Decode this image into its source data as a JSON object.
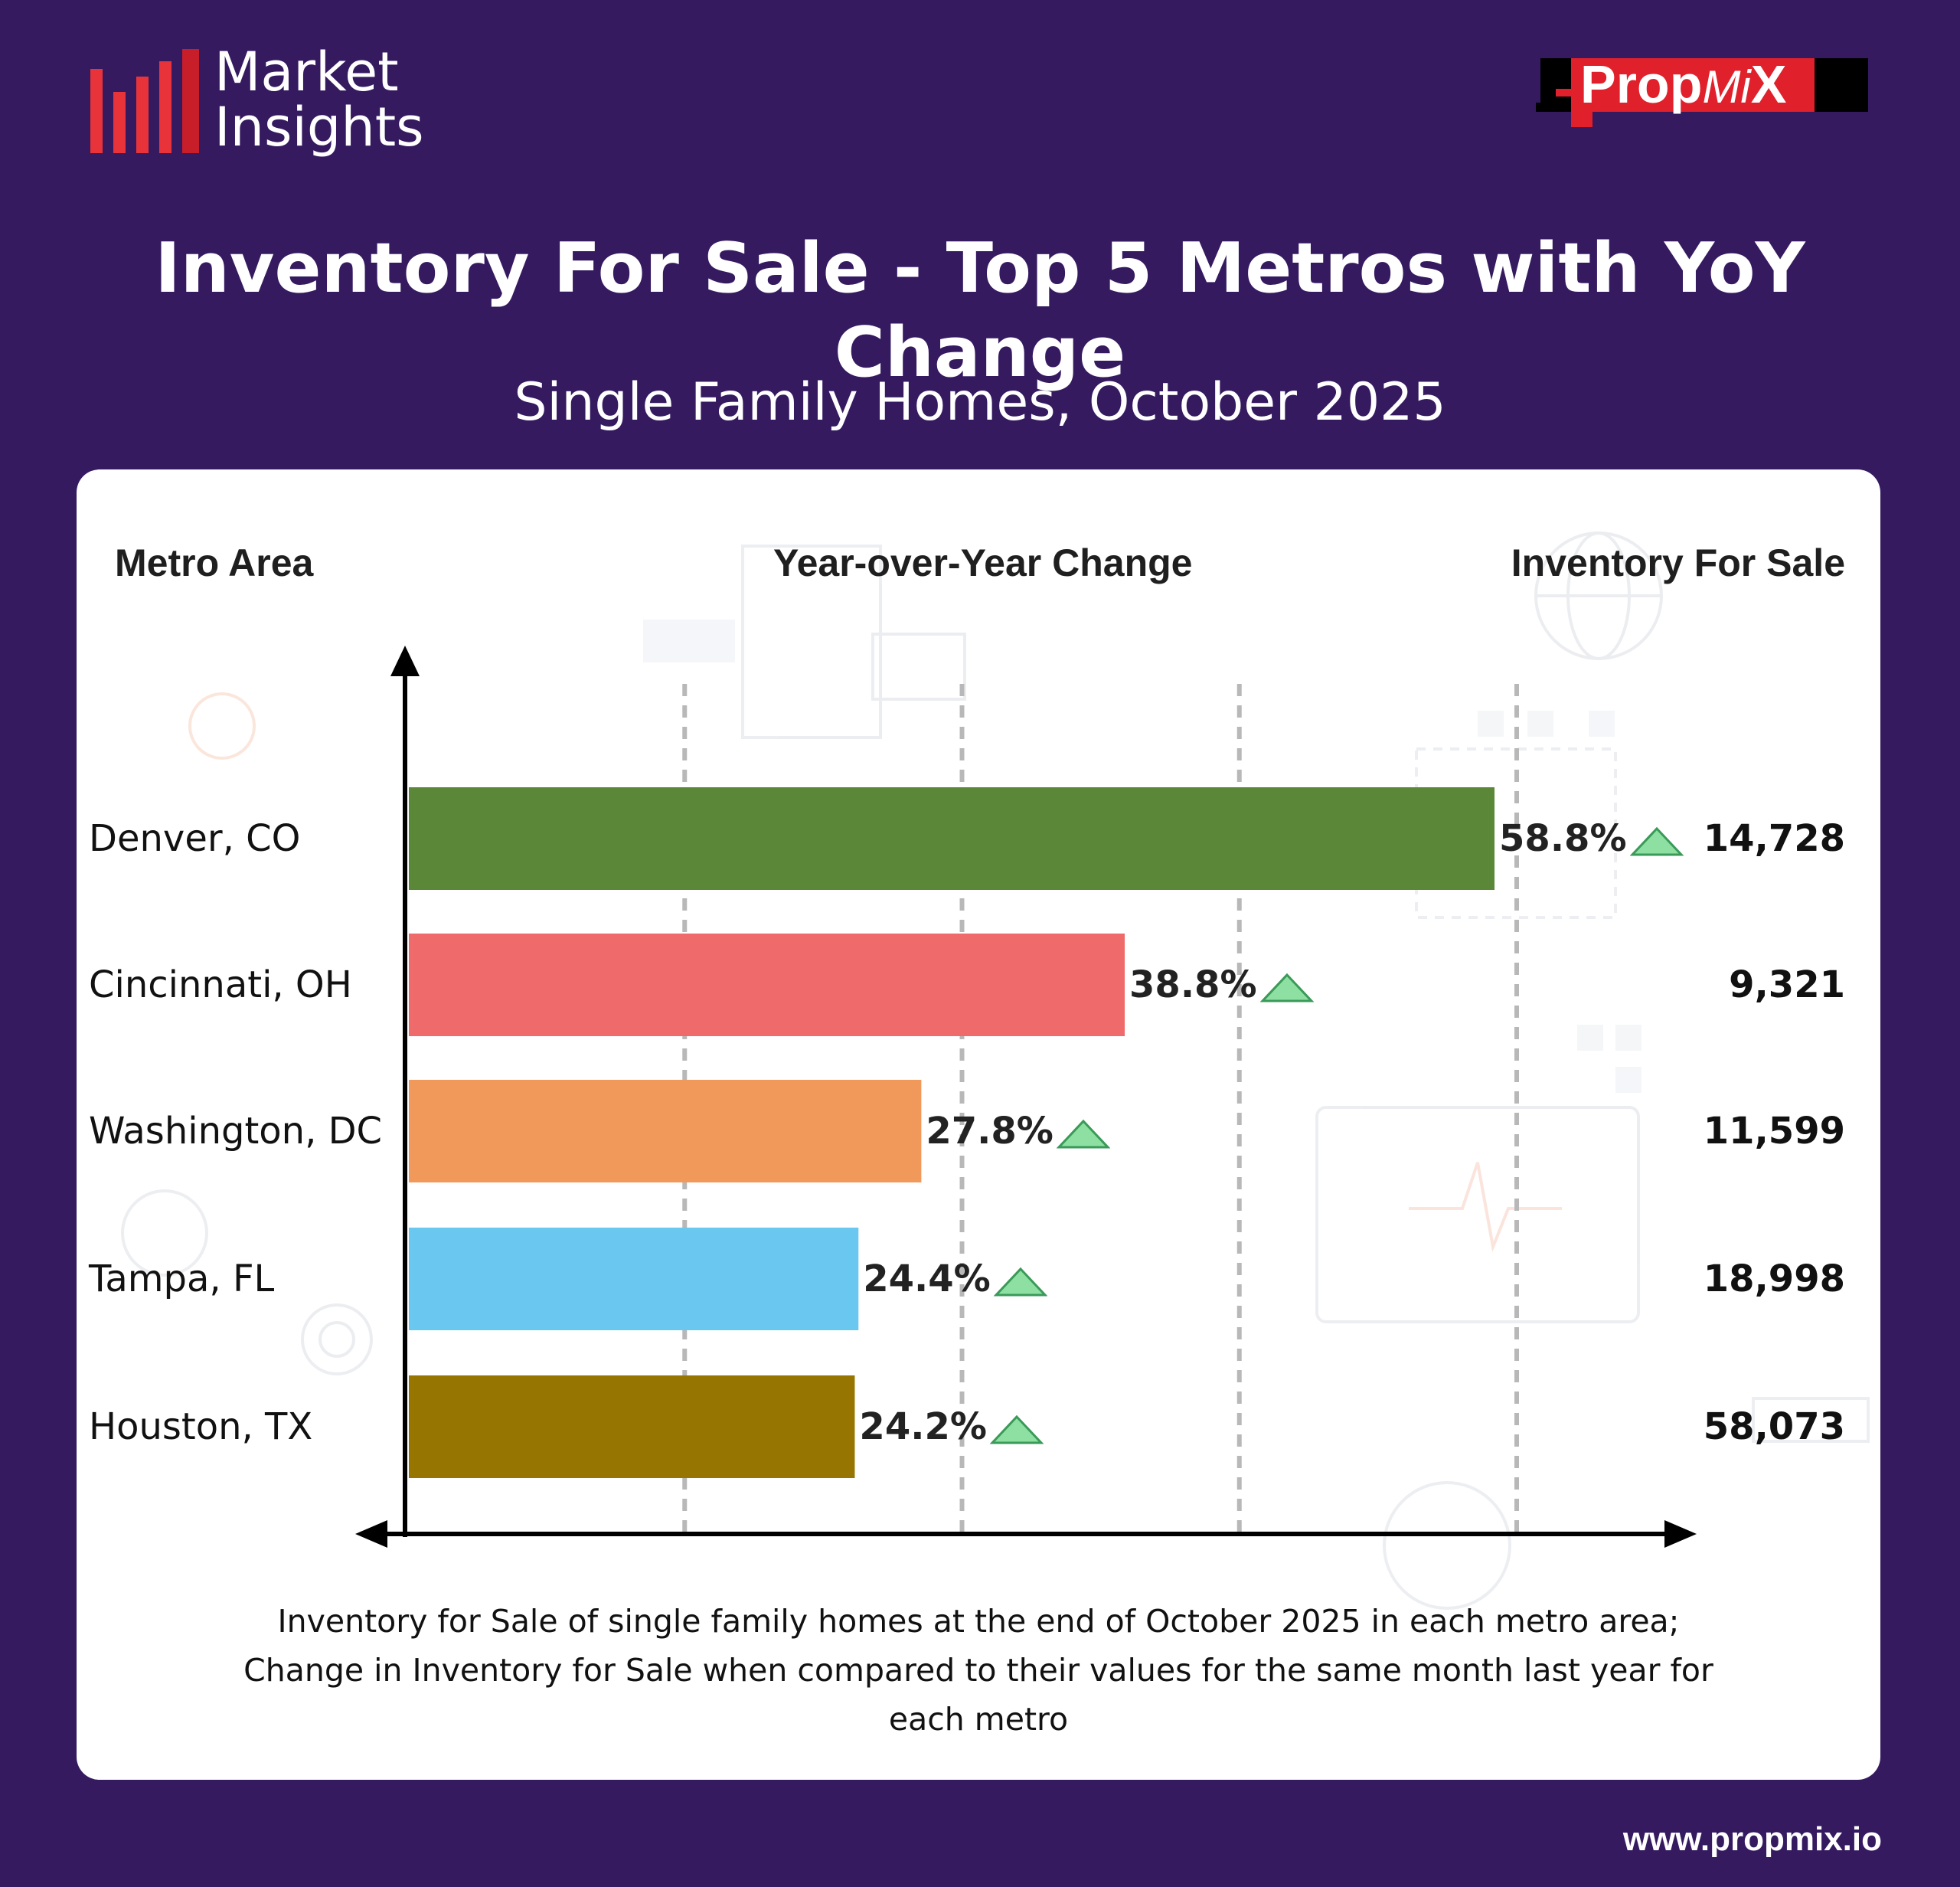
{
  "header": {
    "logo_line1": "Market",
    "logo_line2": "Insights",
    "brand_main": "Prop",
    "brand_mi": "Mi",
    "brand_x": "X"
  },
  "title": "Inventory For Sale - Top 5 Metros with YoY Change",
  "subtitle": "Single Family Homes, October 2025",
  "columns": {
    "metro": "Metro Area",
    "yoy": "Year-over-Year Change",
    "inventory": "Inventory For Sale"
  },
  "chart_data": {
    "type": "bar",
    "orientation": "horizontal",
    "categories": [
      "Denver, CO",
      "Cincinnati, OH",
      "Washington, DC",
      "Tampa, FL",
      "Houston, TX"
    ],
    "series": [
      {
        "values": [
          58.8,
          38.8,
          27.8,
          24.4,
          24.2
        ],
        "labels": [
          "58.8%",
          "38.8%",
          "27.8%",
          "24.4%",
          "24.2%"
        ],
        "colors": [
          "#5a8738",
          "#ef6a6a",
          "#f1995a",
          "#69c7f0",
          "#967500"
        ]
      }
    ],
    "inventory": [
      "14,728",
      "9,321",
      "11,599",
      "18,998",
      "58,073"
    ],
    "change_direction": [
      "up",
      "up",
      "up",
      "up",
      "up"
    ],
    "up_marker_color": "#8ee0a2",
    "xlim": [
      0,
      60
    ],
    "grid": true,
    "grid_style": "dashed vertical"
  },
  "footnote": {
    "line1": "Inventory for Sale of single family homes at the end of October 2025 in each metro area;",
    "line2": "Change in Inventory for Sale when compared to their values for the same month last year for",
    "line3": "each metro"
  },
  "url": "www.propmix.io",
  "colors": {
    "background": "#351a60",
    "card": "#ffffff",
    "brand_red": "#e0202a"
  }
}
